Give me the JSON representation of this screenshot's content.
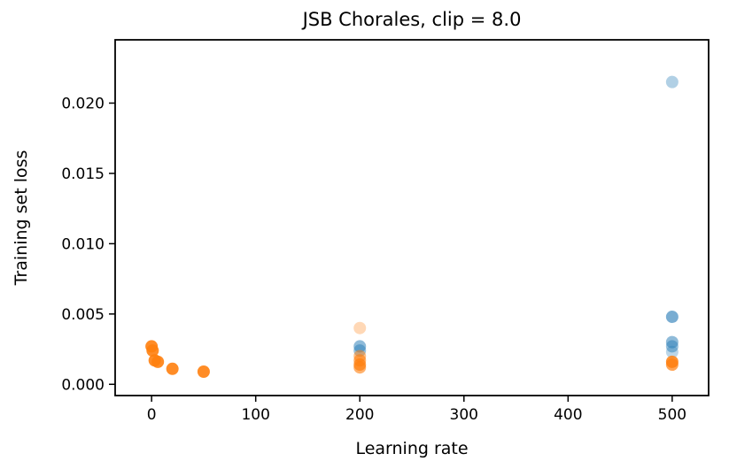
{
  "chart_data": {
    "type": "scatter",
    "title": "JSB Chorales, clip = 8.0",
    "xlabel": "Learning rate",
    "ylabel": "Training set loss",
    "xlim": [
      -35,
      535
    ],
    "ylim": [
      -0.0008,
      0.0245
    ],
    "grid": false,
    "legend": "none",
    "xticks": [
      0,
      100,
      200,
      300,
      400,
      500
    ],
    "xtick_labels": [
      "0",
      "100",
      "200",
      "300",
      "400",
      "500"
    ],
    "yticks": [
      0.0,
      0.005,
      0.01,
      0.015,
      0.02
    ],
    "ytick_labels": [
      "0.000",
      "0.005",
      "0.010",
      "0.015",
      "0.020"
    ],
    "marker": "circle",
    "series": [
      {
        "name": "blue-series",
        "color": "#1f77b4",
        "alpha": 0.45,
        "points": [
          [
            200,
            0.0027,
            0.5
          ],
          [
            200,
            0.0024,
            0.45
          ],
          [
            500,
            0.0215,
            0.35
          ],
          [
            500,
            0.0048,
            0.6
          ],
          [
            500,
            0.003,
            0.5
          ],
          [
            500,
            0.0027,
            0.45
          ],
          [
            500,
            0.0023,
            0.3
          ]
        ]
      },
      {
        "name": "orange-series",
        "color": "#ff7f0e",
        "alpha": 0.85,
        "points": [
          [
            0,
            0.0027,
            0.9
          ],
          [
            1,
            0.0024,
            0.9
          ],
          [
            3,
            0.0017,
            0.9
          ],
          [
            6,
            0.0016,
            0.9
          ],
          [
            20,
            0.0011,
            0.9
          ],
          [
            50,
            0.0009,
            0.9
          ],
          [
            200,
            0.004,
            0.3
          ],
          [
            200,
            0.002,
            0.5
          ],
          [
            200,
            0.0017,
            0.6
          ],
          [
            200,
            0.0014,
            0.7
          ],
          [
            200,
            0.0012,
            0.6
          ],
          [
            500,
            0.0016,
            0.85
          ],
          [
            500,
            0.0014,
            0.7
          ]
        ]
      }
    ]
  }
}
